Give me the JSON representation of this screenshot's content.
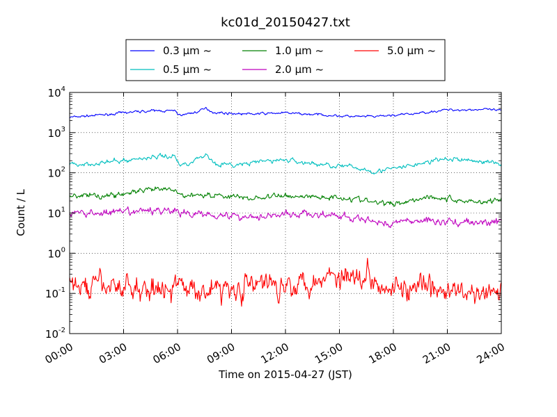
{
  "chart_data": {
    "type": "line",
    "title": "kc01d_20150427.txt",
    "xlabel": "Time on 2015-04-27 (JST)",
    "ylabel": "Count / L",
    "xscale": "linear",
    "yscale": "log",
    "xlim": [
      0,
      24
    ],
    "ylim": [
      0.01,
      10000
    ],
    "grid": true,
    "legend_position": "top-outside",
    "x_tick_values": [
      0,
      3,
      6,
      9,
      12,
      15,
      18,
      21,
      24
    ],
    "x_tick_labels": [
      "00:00",
      "03:00",
      "06:00",
      "09:00",
      "12:00",
      "15:00",
      "18:00",
      "21:00",
      "24:00"
    ],
    "y_ticks": [
      {
        "value": 0.01,
        "base": "10",
        "exp": "-2"
      },
      {
        "value": 0.1,
        "base": "10",
        "exp": "-1"
      },
      {
        "value": 1,
        "base": "10",
        "exp": "0"
      },
      {
        "value": 10,
        "base": "10",
        "exp": "1"
      },
      {
        "value": 100,
        "base": "10",
        "exp": "2"
      },
      {
        "value": 1000,
        "base": "10",
        "exp": "3"
      },
      {
        "value": 10000,
        "base": "10",
        "exp": "4"
      }
    ],
    "noise_seed": 7,
    "series": [
      {
        "name": "0.3 μm ~",
        "color": "#0000ff",
        "noise": 0.012,
        "x": [
          0,
          1,
          2,
          3,
          4,
          5,
          5.6,
          5.9,
          6.1,
          7,
          7.6,
          8,
          9,
          10,
          11,
          12,
          13,
          14,
          15,
          16,
          17,
          18,
          19,
          20,
          21,
          22,
          23,
          24
        ],
        "y": [
          2400,
          2600,
          2800,
          3100,
          3400,
          3500,
          3500,
          3400,
          2700,
          3200,
          4000,
          3200,
          3000,
          2900,
          3000,
          3100,
          2900,
          2800,
          2600,
          2500,
          2500,
          2700,
          2900,
          3300,
          3700,
          3700,
          3800,
          3500
        ]
      },
      {
        "name": "0.5 μm ~",
        "color": "#00bfbf",
        "noise": 0.025,
        "x": [
          0,
          1,
          2,
          3,
          4,
          5,
          5.6,
          5.9,
          6.1,
          7,
          7.6,
          8,
          9,
          10,
          11,
          12,
          13,
          14,
          15,
          16,
          17,
          18,
          19,
          20,
          21,
          22,
          23,
          24
        ],
        "y": [
          160,
          170,
          180,
          200,
          230,
          260,
          260,
          250,
          150,
          210,
          290,
          180,
          150,
          170,
          200,
          210,
          180,
          160,
          150,
          130,
          110,
          125,
          150,
          190,
          220,
          210,
          190,
          170
        ]
      },
      {
        "name": "1.0 μm ~",
        "color": "#008000",
        "noise": 0.03,
        "x": [
          0,
          1,
          2,
          3,
          4,
          5,
          5.6,
          5.9,
          6.1,
          7,
          8,
          9,
          10,
          11,
          12,
          13,
          14,
          15,
          16,
          17,
          18,
          19,
          20,
          21,
          22,
          23,
          24
        ],
        "y": [
          28,
          27,
          27,
          30,
          35,
          38,
          37,
          36,
          27,
          29,
          28,
          26,
          23,
          25,
          27,
          26,
          25,
          25,
          22,
          18,
          17,
          21,
          26,
          22,
          20,
          19,
          22
        ]
      },
      {
        "name": "2.0 μm ~",
        "color": "#bf00bf",
        "noise": 0.04,
        "x": [
          0,
          1,
          2,
          3,
          4,
          5,
          5.6,
          5.9,
          6.1,
          7,
          8,
          9,
          10,
          11,
          12,
          13,
          14,
          15,
          16,
          17,
          18,
          19,
          20,
          21,
          22,
          23,
          24
        ],
        "y": [
          10,
          10,
          10,
          10,
          11,
          12,
          12,
          11,
          9.5,
          10,
          9.5,
          8.5,
          8,
          9,
          9,
          9.5,
          9,
          8,
          7,
          6,
          5.5,
          6.5,
          6.5,
          6,
          6,
          5.5,
          6.5
        ]
      },
      {
        "name": "5.0 μm ~",
        "color": "#ff0000",
        "noise": 0.13,
        "x": [
          0,
          1,
          2,
          3,
          4,
          5,
          6,
          7,
          8,
          9,
          10,
          11,
          12,
          13,
          14,
          15,
          16,
          17,
          18,
          19,
          20,
          21,
          22,
          23,
          24
        ],
        "y": [
          0.15,
          0.14,
          0.15,
          0.15,
          0.13,
          0.15,
          0.13,
          0.13,
          0.13,
          0.14,
          0.15,
          0.17,
          0.18,
          0.2,
          0.25,
          0.3,
          0.3,
          0.25,
          0.15,
          0.12,
          0.12,
          0.11,
          0.1,
          0.09,
          0.1
        ]
      }
    ]
  }
}
